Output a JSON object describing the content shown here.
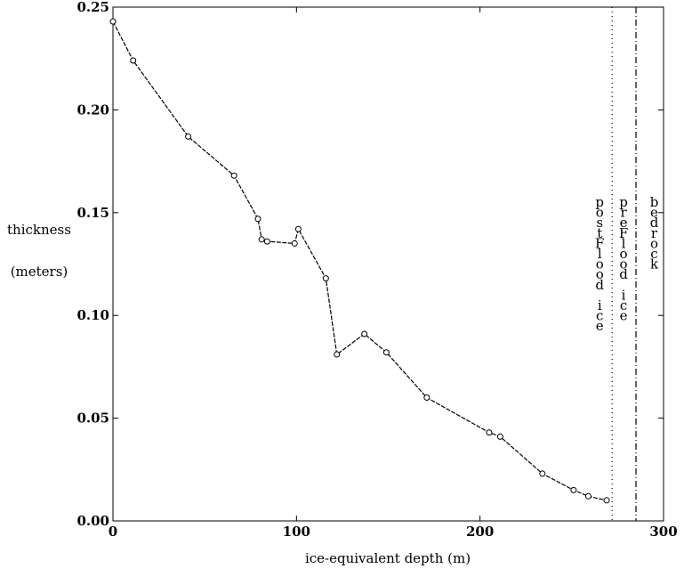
{
  "chart_data": {
    "type": "line",
    "title": "",
    "xlabel": "ice-equivalent depth (m)",
    "ylabel_lines": [
      "thickness",
      "(meters)"
    ],
    "xlim": [
      0,
      300
    ],
    "ylim": [
      0,
      0.25
    ],
    "xticks": [
      0,
      100,
      200,
      300
    ],
    "xtick_labels": [
      "0",
      "100",
      "200",
      "300"
    ],
    "yticks": [
      0,
      0.05,
      0.1,
      0.15,
      0.2,
      0.25
    ],
    "ytick_labels": [
      "0.00",
      "0.05",
      "0.10",
      "0.15",
      "0.20",
      "0.25"
    ],
    "grid": false,
    "legend": "none",
    "line_color": "#000000",
    "series": [
      {
        "x": [
          0,
          11,
          41,
          66,
          79,
          81,
          84,
          99,
          101,
          116,
          122,
          137,
          149,
          171,
          205,
          211,
          234,
          251,
          259,
          269
        ],
        "y": [
          0.243,
          0.224,
          0.187,
          0.168,
          0.147,
          0.137,
          0.136,
          0.135,
          0.142,
          0.118,
          0.081,
          0.091,
          0.082,
          0.06,
          0.043,
          0.041,
          0.023,
          0.015,
          0.012,
          0.01
        ]
      }
    ],
    "boundaries": [
      {
        "x": 272,
        "style": "dotted",
        "label": "postFlood ice"
      },
      {
        "x": 285,
        "style": "dashdot",
        "label": "preFlood ice"
      }
    ],
    "region_labels": [
      {
        "x": 292,
        "label": "bedrock"
      }
    ]
  }
}
